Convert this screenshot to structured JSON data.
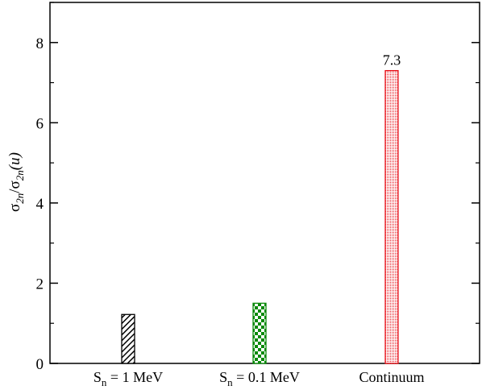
{
  "chart_data": {
    "type": "bar",
    "categories": [
      {
        "main": "S",
        "sub": "n",
        "rest": " = 1 MeV"
      },
      {
        "main": "S",
        "sub": "n",
        "rest": " = 0.1 MeV"
      },
      {
        "main": "Continuum",
        "sub": "",
        "rest": ""
      }
    ],
    "values": [
      1.22,
      1.5,
      7.3
    ],
    "data_labels": [
      "",
      "",
      "7.3"
    ],
    "bar_styles": [
      {
        "pattern": "diagonal-hatch",
        "color": "#000000"
      },
      {
        "pattern": "checker",
        "color": "#0a8a0a"
      },
      {
        "pattern": "dots",
        "color": "#e8141c"
      }
    ],
    "ylabel": {
      "s1": "σ",
      "sub1": "2n",
      "slash": "/",
      "s2": "σ",
      "sub2": "2n",
      "tail": "(u)"
    },
    "ylim": [
      0,
      9
    ],
    "y_ticks": [
      "0",
      "2",
      "4",
      "6",
      "8"
    ],
    "y_tick_values": [
      0,
      2,
      4,
      6,
      8
    ],
    "grid": false,
    "legend": "none"
  }
}
